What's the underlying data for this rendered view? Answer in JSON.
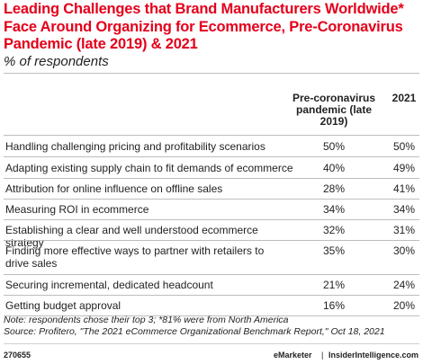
{
  "header": {
    "title": "Leading Challenges that Brand Manufacturers Worldwide* Face Around Organizing for Ecommerce, Pre-Coronavirus Pandemic (late 2019) & 2021",
    "subtitle": "% of respondents"
  },
  "colors": {
    "title": "#e3001b",
    "text": "#222222",
    "rule": "#bdbdbd"
  },
  "chart_data": {
    "type": "table",
    "columns": [
      "Pre-coronavirus pandemic (late 2019)",
      "2021"
    ],
    "rows": [
      {
        "label": "Handling challenging pricing and profitability scenarios",
        "values": [
          "50%",
          "50%"
        ]
      },
      {
        "label": "Adapting existing supply chain to fit demands of ecommerce",
        "values": [
          "40%",
          "49%"
        ]
      },
      {
        "label": "Attribution for online influence on offline sales",
        "values": [
          "28%",
          "41%"
        ]
      },
      {
        "label": "Measuring ROI in ecommerce",
        "values": [
          "34%",
          "34%"
        ]
      },
      {
        "label": "Establishing a clear and well understood ecommerce strategy",
        "values": [
          "32%",
          "31%"
        ]
      },
      {
        "label": "Finding more effective ways to partner with retailers to drive sales",
        "values": [
          "35%",
          "30%"
        ]
      },
      {
        "label": "Securing incremental, dedicated headcount",
        "values": [
          "21%",
          "24%"
        ]
      },
      {
        "label": "Getting budget approval",
        "values": [
          "16%",
          "20%"
        ]
      }
    ]
  },
  "notes": {
    "note": "Note: respondents chose their top 3; *81% were from North America",
    "source": "Source: Profitero, \"The 2021 eCommerce Organizational Benchmark Report,\" Oct 18, 2021"
  },
  "footer": {
    "chart_id": "270655",
    "brand1": "eMarketer",
    "divider": "|",
    "brand2": "InsiderIntelligence.com"
  }
}
